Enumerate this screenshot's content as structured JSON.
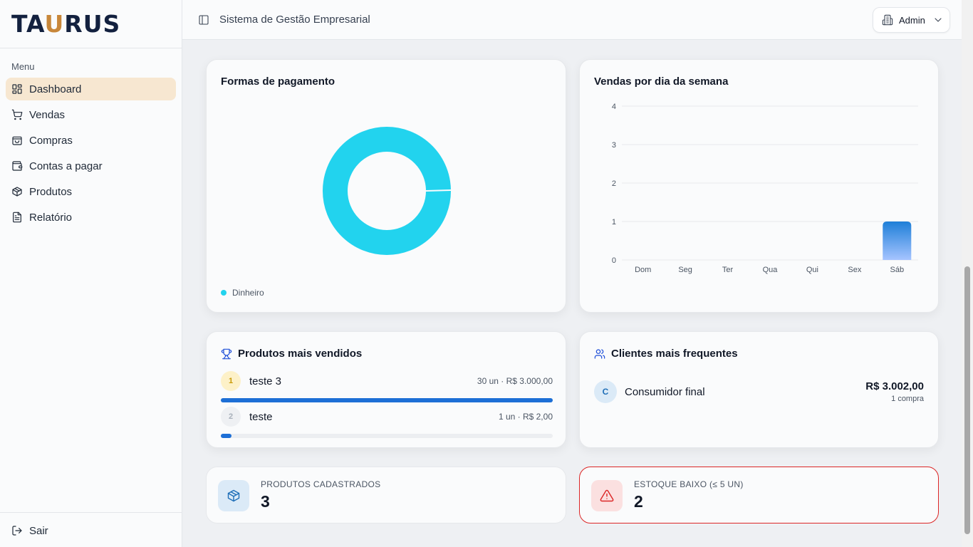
{
  "sidebar": {
    "logo": {
      "text_start": "TA",
      "text_accent": "U",
      "text_end": "RUS"
    },
    "menu_label": "Menu",
    "items": [
      {
        "label": "Dashboard",
        "icon": "dashboard-icon",
        "active": true
      },
      {
        "label": "Vendas",
        "icon": "cart-icon"
      },
      {
        "label": "Compras",
        "icon": "shopping-bag-icon"
      },
      {
        "label": "Contas a pagar",
        "icon": "wallet-icon"
      },
      {
        "label": "Produtos",
        "icon": "package-icon"
      },
      {
        "label": "Relatório",
        "icon": "file-text-icon"
      }
    ],
    "logout_label": "Sair"
  },
  "header": {
    "title": "Sistema de Gestão Empresarial",
    "user_label": "Admin"
  },
  "payments": {
    "title": "Formas de pagamento",
    "chart_data": {
      "type": "pie",
      "labels": [
        "Dinheiro"
      ],
      "values": [
        100
      ],
      "colors": [
        "#22d3ee"
      ],
      "legend": "bottom-left"
    },
    "legend": [
      {
        "label": "Dinheiro",
        "color": "#22d3ee"
      }
    ]
  },
  "weekday_sales": {
    "title": "Vendas por dia da semana",
    "chart_data": {
      "type": "bar",
      "categories": [
        "Dom",
        "Seg",
        "Ter",
        "Qua",
        "Qui",
        "Sex",
        "Sáb"
      ],
      "values": [
        0,
        0,
        0,
        0,
        0,
        0,
        1
      ],
      "ylim": [
        0,
        4
      ],
      "yticks": [
        "0",
        "1",
        "2",
        "3",
        "4"
      ],
      "grid": true,
      "color": "#3b82f6"
    }
  },
  "top_products": {
    "title": "Produtos mais vendidos",
    "items": [
      {
        "rank": "1",
        "name": "teste 3",
        "meta": "30 un · R$ 3.000,00",
        "share": 1.0
      },
      {
        "rank": "2",
        "name": "teste",
        "meta": "1 un · R$ 2,00",
        "share": 0.033
      }
    ]
  },
  "top_clients": {
    "title": "Clientes mais frequentes",
    "items": [
      {
        "initial": "C",
        "name": "Consumidor final",
        "value": "R$ 3.002,00",
        "count": "1 compra"
      }
    ]
  },
  "stats": {
    "products": {
      "label": "PRODUTOS CADASTRADOS",
      "value": "3",
      "color": "#1f6fb8"
    },
    "low_stock": {
      "label": "ESTOQUE BAIXO (≤ 5 UN)",
      "value": "2",
      "color": "#dc2626"
    }
  }
}
